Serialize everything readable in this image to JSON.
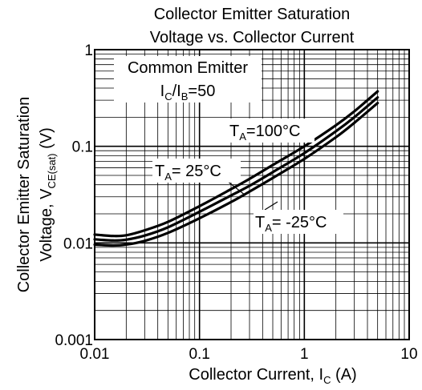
{
  "chart_data": {
    "type": "line",
    "title_line1": "Collector Emitter Saturation",
    "title_line2": "Voltage vs. Collector Current",
    "xlabel": {
      "main": "Collector Current, I",
      "sub": "C",
      "tail": " (A)"
    },
    "ylabel": {
      "line1": "Collector Emitter Saturation",
      "line2_main": "Voltage, V",
      "line2_sub": "CE(sat)",
      "line2_tail": " (V)"
    },
    "x_scale": "log",
    "y_scale": "log",
    "xlim": [
      0.01,
      10
    ],
    "ylim": [
      0.001,
      1
    ],
    "x_ticks": [
      "0.01",
      "0.1",
      "1",
      "10"
    ],
    "y_ticks": [
      "0.001",
      "0.01",
      "0.1",
      "1"
    ],
    "grid": true,
    "annotations": {
      "condition_line1": "Common Emitter",
      "condition_line2": {
        "a": "I",
        "a_sub": "C",
        "b": "/I",
        "b_sub": "B",
        "c": "=50"
      },
      "t100": {
        "main": "T",
        "sub": "A",
        "tail": "=100°C"
      },
      "t25": {
        "main": "T",
        "sub": "A",
        "tail": "= 25°C"
      },
      "tm25": {
        "main": "T",
        "sub": "A",
        "tail": "= -25°C"
      }
    },
    "series": [
      {
        "x": [
          0.01,
          0.015,
          0.02,
          0.03,
          0.05,
          0.1,
          0.2,
          0.3,
          0.5,
          1,
          2,
          3,
          5
        ],
        "y": [
          0.0122,
          0.0118,
          0.012,
          0.0135,
          0.0165,
          0.024,
          0.036,
          0.046,
          0.064,
          0.1,
          0.165,
          0.23,
          0.37
        ]
      },
      {
        "x": [
          0.01,
          0.015,
          0.02,
          0.03,
          0.05,
          0.1,
          0.2,
          0.3,
          0.5,
          1,
          2,
          3,
          5
        ],
        "y": [
          0.0109,
          0.0106,
          0.0108,
          0.0119,
          0.0145,
          0.021,
          0.031,
          0.039,
          0.054,
          0.085,
          0.143,
          0.2,
          0.32
        ]
      },
      {
        "x": [
          0.01,
          0.015,
          0.02,
          0.03,
          0.05,
          0.1,
          0.2,
          0.3,
          0.5,
          1,
          2,
          3,
          5
        ],
        "y": [
          0.0096,
          0.0094,
          0.0096,
          0.0105,
          0.0127,
          0.018,
          0.0265,
          0.034,
          0.047,
          0.074,
          0.124,
          0.175,
          0.28
        ]
      }
    ]
  }
}
